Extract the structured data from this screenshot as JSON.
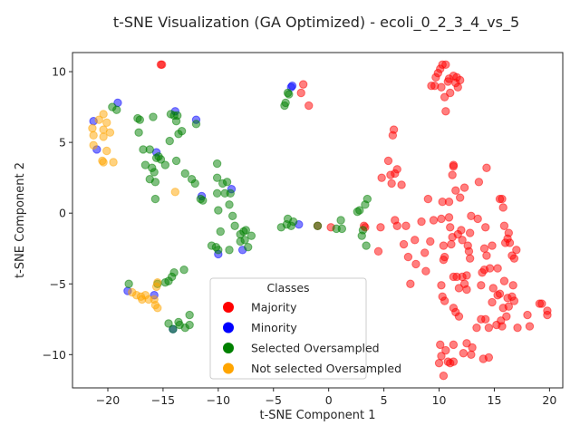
{
  "chart_data": {
    "type": "scatter",
    "title": "t-SNE Visualization (GA Optimized) - ecoli_0_2_3_4_vs_5",
    "xlabel": "t-SNE Component 1",
    "ylabel": "t-SNE Component 2",
    "xlim": [
      -23.2,
      21.2
    ],
    "ylim": [
      -12.35,
      11.35
    ],
    "xticks": [
      -20,
      -15,
      -10,
      -5,
      0,
      5,
      10,
      15,
      20
    ],
    "yticks": [
      -10,
      -5,
      0,
      5,
      10
    ],
    "xtick_labels": [
      "−20",
      "−15",
      "−10",
      "−5",
      "0",
      "5",
      "10",
      "15",
      "20"
    ],
    "ytick_labels": [
      "−10",
      "−5",
      "0",
      "5",
      "10"
    ],
    "grid": false,
    "point_alpha": 0.5,
    "legend": {
      "title": "Classes",
      "placement": "bottom-center"
    },
    "series": [
      {
        "name": "Majority",
        "color": "#ff0000",
        "points": [
          [
            -15.2,
            10.5
          ],
          [
            -15.1,
            10.5
          ],
          [
            -2.3,
            9.1
          ],
          [
            -2.5,
            8.5
          ],
          [
            -1.8,
            7.6
          ],
          [
            -1.0,
            -0.9
          ],
          [
            0.2,
            -1.0
          ],
          [
            3.2,
            -0.9
          ],
          [
            3.3,
            -1.0
          ],
          [
            4.5,
            -2.7
          ],
          [
            4.8,
            2.5
          ],
          [
            4.7,
            -1.0
          ],
          [
            5.4,
            3.7
          ],
          [
            5.6,
            2.7
          ],
          [
            5.8,
            5.5
          ],
          [
            5.9,
            5.9
          ],
          [
            5.7,
            2.1
          ],
          [
            6.0,
            2.8
          ],
          [
            6.2,
            3.1
          ],
          [
            6.0,
            -0.5
          ],
          [
            6.2,
            -0.9
          ],
          [
            6.6,
            2.0
          ],
          [
            6.8,
            -2.2
          ],
          [
            7.0,
            -0.9
          ],
          [
            7.2,
            -3.1
          ],
          [
            7.4,
            -5.0
          ],
          [
            7.8,
            -1.9
          ],
          [
            7.9,
            -3.6
          ],
          [
            8.4,
            -0.6
          ],
          [
            8.8,
            -4.1
          ],
          [
            8.7,
            -2.8
          ],
          [
            9.0,
            1.0
          ],
          [
            9.2,
            -2.0
          ],
          [
            9.5,
            -0.5
          ],
          [
            9.3,
            9.0
          ],
          [
            9.6,
            9.0
          ],
          [
            9.7,
            9.6
          ],
          [
            9.9,
            9.9
          ],
          [
            10.1,
            10.2
          ],
          [
            10.3,
            10.5
          ],
          [
            10.6,
            10.5
          ],
          [
            10.2,
            8.9
          ],
          [
            10.5,
            8.2
          ],
          [
            10.6,
            7.2
          ],
          [
            10.8,
            9.3
          ],
          [
            10.9,
            9.5
          ],
          [
            11.0,
            8.5
          ],
          [
            11.3,
            9.7
          ],
          [
            11.5,
            9.2
          ],
          [
            11.7,
            8.9
          ],
          [
            11.9,
            9.4
          ],
          [
            11.6,
            9.6
          ],
          [
            10.2,
            -0.4
          ],
          [
            10.3,
            0.8
          ],
          [
            10.4,
            -2.3
          ],
          [
            10.5,
            -3.1
          ],
          [
            10.4,
            -3.3
          ],
          [
            10.2,
            -5.1
          ],
          [
            10.3,
            -5.9
          ],
          [
            10.5,
            -6.2
          ],
          [
            10.1,
            -9.3
          ],
          [
            10.2,
            -10.1
          ],
          [
            10.0,
            -10.6
          ],
          [
            10.4,
            -11.5
          ],
          [
            10.6,
            -9.7
          ],
          [
            10.8,
            -10.5
          ],
          [
            11.0,
            -10.6
          ],
          [
            11.3,
            -10.5
          ],
          [
            11.3,
            -9.3
          ],
          [
            10.9,
            -0.3
          ],
          [
            11.0,
            -1.0
          ],
          [
            11.1,
            -2.2
          ],
          [
            11.2,
            -1.7
          ],
          [
            10.9,
            0.8
          ],
          [
            11.2,
            2.7
          ],
          [
            11.3,
            3.4
          ],
          [
            11.3,
            3.3
          ],
          [
            11.5,
            1.6
          ],
          [
            11.7,
            -1.5
          ],
          [
            11.9,
            1.1
          ],
          [
            12.0,
            -1.2
          ],
          [
            12.1,
            -1.9
          ],
          [
            12.3,
            1.8
          ],
          [
            11.3,
            -4.5
          ],
          [
            11.6,
            -4.5
          ],
          [
            11.8,
            -5.3
          ],
          [
            12.1,
            -4.5
          ],
          [
            12.3,
            -5.0
          ],
          [
            12.5,
            -5.4
          ],
          [
            11.3,
            -6.7
          ],
          [
            11.5,
            -7.0
          ],
          [
            11.8,
            -7.3
          ],
          [
            12.5,
            -4.4
          ],
          [
            12.6,
            -2.3
          ],
          [
            12.7,
            -2.7
          ],
          [
            12.8,
            -3.2
          ],
          [
            12.8,
            -1.4
          ],
          [
            12.9,
            -0.2
          ],
          [
            13.5,
            -0.4
          ],
          [
            13.6,
            2.2
          ],
          [
            13.9,
            -4.2
          ],
          [
            14.1,
            -4.0
          ],
          [
            14.3,
            3.2
          ],
          [
            14.2,
            -1.0
          ],
          [
            14.1,
            -2.5
          ],
          [
            14.3,
            -3.0
          ],
          [
            14.6,
            -3.9
          ],
          [
            14.8,
            -2.3
          ],
          [
            14.9,
            -5.3
          ],
          [
            15.3,
            -5.8
          ],
          [
            15.5,
            -5.7
          ],
          [
            15.5,
            1.0
          ],
          [
            15.7,
            1.0
          ],
          [
            15.8,
            0.4
          ],
          [
            15.9,
            -0.9
          ],
          [
            16.0,
            -2.1
          ],
          [
            16.2,
            -1.8
          ],
          [
            16.3,
            -1.4
          ],
          [
            16.4,
            -2.1
          ],
          [
            16.6,
            -3.0
          ],
          [
            16.8,
            -3.2
          ],
          [
            16.7,
            -5.1
          ],
          [
            17.0,
            -2.6
          ],
          [
            17.1,
            -8.1
          ],
          [
            16.8,
            -6.2
          ],
          [
            16.6,
            -5.9
          ],
          [
            16.3,
            -6.6
          ],
          [
            16.1,
            -7.3
          ],
          [
            15.8,
            -6.7
          ],
          [
            15.6,
            -7.6
          ],
          [
            15.9,
            -4.8
          ],
          [
            15.7,
            -8.0
          ],
          [
            15.2,
            -7.9
          ],
          [
            14.8,
            -6.3
          ],
          [
            14.5,
            -8.1
          ],
          [
            14.2,
            -7.5
          ],
          [
            13.8,
            -7.5
          ],
          [
            13.4,
            -8.1
          ],
          [
            13.0,
            -9.5
          ],
          [
            12.9,
            -10.0
          ],
          [
            12.5,
            -9.2
          ],
          [
            12.2,
            -9.9
          ],
          [
            14.0,
            -10.3
          ],
          [
            14.5,
            -10.2
          ],
          [
            18.0,
            -7.2
          ],
          [
            18.2,
            -8.0
          ],
          [
            19.1,
            -6.4
          ],
          [
            19.3,
            -6.4
          ],
          [
            19.8,
            -6.9
          ],
          [
            19.8,
            -7.2
          ],
          [
            15.3,
            -3.9
          ],
          [
            16.2,
            -6.0
          ],
          [
            13.8,
            -5.1
          ]
        ]
      },
      {
        "name": "Minority",
        "color": "#0000ff",
        "points": [
          [
            -21.3,
            6.5
          ],
          [
            -21.0,
            4.5
          ],
          [
            -19.1,
            7.8
          ],
          [
            -13.9,
            7.2
          ],
          [
            -12.0,
            6.6
          ],
          [
            -11.5,
            1.2
          ],
          [
            -15.6,
            4.3
          ],
          [
            -8.8,
            1.7
          ],
          [
            -10.0,
            -2.9
          ],
          [
            -7.8,
            -2.6
          ],
          [
            -3.3,
            9.0
          ],
          [
            -3.4,
            8.9
          ],
          [
            -2.7,
            -0.8
          ],
          [
            -18.2,
            -5.5
          ],
          [
            -15.8,
            -5.8
          ],
          [
            -14.1,
            -8.2
          ]
        ]
      },
      {
        "name": "Selected Oversampled",
        "color": "#008000",
        "points": [
          [
            -19.6,
            7.5
          ],
          [
            -19.2,
            7.3
          ],
          [
            -17.3,
            6.7
          ],
          [
            -17.1,
            6.6
          ],
          [
            -15.9,
            6.8
          ],
          [
            -14.3,
            7.0
          ],
          [
            -14.0,
            6.9
          ],
          [
            -13.7,
            6.9
          ],
          [
            -13.8,
            6.5
          ],
          [
            -13.6,
            5.6
          ],
          [
            -13.3,
            5.8
          ],
          [
            -14.4,
            5.1
          ],
          [
            -17.2,
            5.7
          ],
          [
            -16.8,
            4.5
          ],
          [
            -16.2,
            4.5
          ],
          [
            -15.6,
            3.9
          ],
          [
            -15.4,
            4.0
          ],
          [
            -15.2,
            3.8
          ],
          [
            -14.8,
            3.4
          ],
          [
            -13.8,
            3.7
          ],
          [
            -13.0,
            2.8
          ],
          [
            -12.4,
            2.4
          ],
          [
            -12.1,
            2.1
          ],
          [
            -16.6,
            3.4
          ],
          [
            -16.0,
            3.2
          ],
          [
            -15.8,
            2.9
          ],
          [
            -16.2,
            2.4
          ],
          [
            -15.7,
            2.2
          ],
          [
            -15.7,
            1.0
          ],
          [
            -12.0,
            6.3
          ],
          [
            -11.6,
            1.0
          ],
          [
            -11.4,
            0.9
          ],
          [
            -10.1,
            3.5
          ],
          [
            -10.1,
            2.5
          ],
          [
            -9.6,
            2.1
          ],
          [
            -9.2,
            2.2
          ],
          [
            -8.9,
            1.4
          ],
          [
            -9.4,
            1.4
          ],
          [
            -10.1,
            1.4
          ],
          [
            -10.0,
            0.2
          ],
          [
            -9.0,
            0.6
          ],
          [
            -8.7,
            -0.2
          ],
          [
            -8.5,
            -0.9
          ],
          [
            -8.0,
            -1.5
          ],
          [
            -7.7,
            -1.3
          ],
          [
            -7.5,
            -1.2
          ],
          [
            -7.6,
            -1.9
          ],
          [
            -7.3,
            -2.4
          ],
          [
            -7.0,
            -1.6
          ],
          [
            -9.8,
            -1.3
          ],
          [
            -10.6,
            -2.3
          ],
          [
            -10.2,
            -2.4
          ],
          [
            -10.0,
            -2.6
          ],
          [
            -9.0,
            -2.6
          ],
          [
            -8.0,
            -2.0
          ],
          [
            -4.0,
            7.6
          ],
          [
            -3.9,
            7.8
          ],
          [
            -3.6,
            8.4
          ],
          [
            -3.7,
            8.5
          ],
          [
            -4.3,
            -1.0
          ],
          [
            -3.8,
            -0.8
          ],
          [
            -3.7,
            -0.4
          ],
          [
            -3.4,
            -0.9
          ],
          [
            -3.2,
            -0.6
          ],
          [
            -1.0,
            -0.9
          ],
          [
            0.7,
            -1.1
          ],
          [
            1.2,
            -1.1
          ],
          [
            1.1,
            -0.5
          ],
          [
            2.6,
            0.1
          ],
          [
            2.8,
            0.2
          ],
          [
            3.1,
            -1.2
          ],
          [
            3.0,
            -1.6
          ],
          [
            3.4,
            -2.3
          ],
          [
            3.3,
            0.6
          ],
          [
            3.5,
            1.0
          ],
          [
            -18.1,
            -5.0
          ],
          [
            -15.5,
            -5.0
          ],
          [
            -14.0,
            -4.2
          ],
          [
            -14.2,
            -4.5
          ],
          [
            -14.5,
            -4.8
          ],
          [
            -14.8,
            -4.9
          ],
          [
            -13.1,
            -4.0
          ],
          [
            -14.5,
            -7.8
          ],
          [
            -13.6,
            -7.7
          ],
          [
            -13.5,
            -7.9
          ],
          [
            -13.0,
            -8.1
          ],
          [
            -12.6,
            -7.9
          ],
          [
            -12.6,
            -7.2
          ],
          [
            -14.1,
            -8.2
          ]
        ]
      },
      {
        "name": "Not selected Oversampled",
        "color": "#ffa500",
        "points": [
          [
            -20.4,
            7.0
          ],
          [
            -20.8,
            6.6
          ],
          [
            -21.4,
            6.0
          ],
          [
            -21.3,
            5.5
          ],
          [
            -20.4,
            5.9
          ],
          [
            -20.1,
            6.4
          ],
          [
            -19.8,
            5.7
          ],
          [
            -20.4,
            5.4
          ],
          [
            -21.3,
            4.8
          ],
          [
            -20.1,
            4.4
          ],
          [
            -20.5,
            3.7
          ],
          [
            -20.4,
            3.6
          ],
          [
            -19.5,
            3.6
          ],
          [
            -13.9,
            1.5
          ],
          [
            -17.8,
            -5.6
          ],
          [
            -17.4,
            -5.8
          ],
          [
            -17.0,
            -5.9
          ],
          [
            -16.6,
            -5.8
          ],
          [
            -16.9,
            -6.1
          ],
          [
            -16.3,
            -6.1
          ],
          [
            -15.8,
            -6.1
          ],
          [
            -15.7,
            -6.5
          ],
          [
            -15.5,
            -6.7
          ],
          [
            -15.6,
            -5.2
          ],
          [
            -15.5,
            -4.9
          ]
        ]
      }
    ]
  }
}
